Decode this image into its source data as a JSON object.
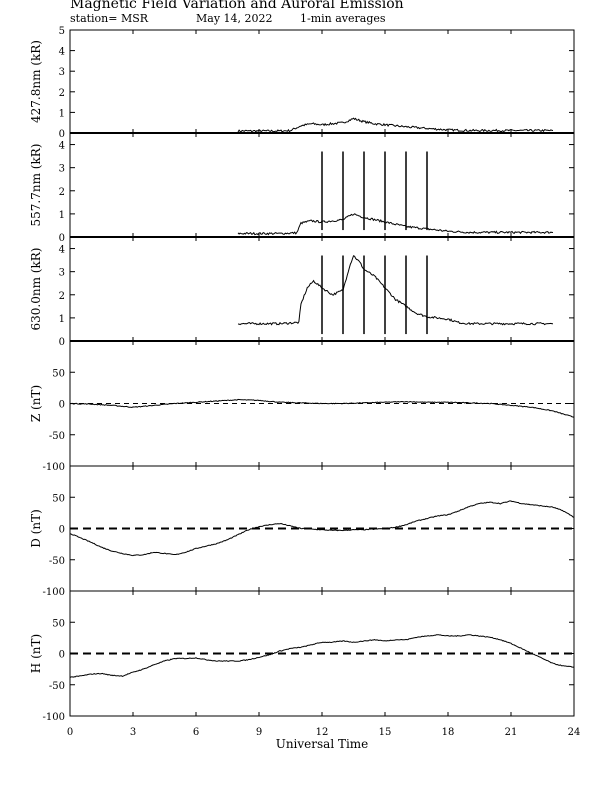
{
  "header": {
    "title": "Magnetic Field Variation and Auroral Emission",
    "station": "station= MSR",
    "date": "May 14, 2022",
    "averaging": "1-min averages"
  },
  "chart_data": {
    "type": "line",
    "xlabel": "Universal Time",
    "xlim": [
      0,
      24
    ],
    "xticks": [
      0,
      3,
      6,
      9,
      12,
      15,
      18,
      21,
      24
    ],
    "panels": [
      {
        "id": "p427",
        "ylabel": "427.8nm (kR)",
        "ylim": [
          0,
          5
        ],
        "yticks": [
          0,
          1,
          2,
          3,
          4,
          5
        ],
        "zero_line": "solid",
        "series": [
          {
            "x": [
              8,
              9,
              10,
              10.5,
              11,
              11.5,
              12,
              12.5,
              13,
              13.5,
              14,
              14.5,
              15,
              16,
              17,
              18,
              19,
              20,
              21,
              22,
              23
            ],
            "y": [
              0.1,
              0.1,
              0.1,
              0.12,
              0.35,
              0.45,
              0.4,
              0.45,
              0.5,
              0.7,
              0.55,
              0.45,
              0.4,
              0.3,
              0.22,
              0.15,
              0.12,
              0.12,
              0.12,
              0.12,
              0.12
            ]
          }
        ]
      },
      {
        "id": "p557",
        "ylabel": "557.7nm (kR)",
        "ylim": [
          0,
          4.5
        ],
        "yticks": [
          0,
          1,
          2,
          3,
          4
        ],
        "zero_line": "solid",
        "spikes": {
          "x": [
            12,
            13,
            14,
            15,
            16,
            17
          ],
          "y": 3.7
        },
        "series": [
          {
            "x": [
              8,
              9,
              10,
              10.8,
              11,
              11.5,
              12,
              12.5,
              13,
              13.5,
              14,
              14.5,
              15,
              16,
              17,
              18,
              19,
              20,
              21,
              22,
              23
            ],
            "y": [
              0.15,
              0.15,
              0.15,
              0.18,
              0.6,
              0.7,
              0.65,
              0.7,
              0.75,
              1.0,
              0.85,
              0.75,
              0.65,
              0.45,
              0.35,
              0.25,
              0.2,
              0.2,
              0.2,
              0.2,
              0.2
            ]
          }
        ]
      },
      {
        "id": "p630",
        "ylabel": "630.0nm (kR)",
        "ylim": [
          0,
          4.5
        ],
        "yticks": [
          0,
          1,
          2,
          3,
          4
        ],
        "zero_line": "solid",
        "spikes": {
          "x": [
            12,
            13,
            14,
            15,
            16,
            17
          ],
          "y": 3.7
        },
        "series": [
          {
            "x": [
              8,
              9,
              10,
              10.9,
              11,
              11.3,
              11.6,
              12,
              12.5,
              13,
              13.3,
              13.5,
              13.8,
              14,
              14.5,
              15,
              15.5,
              16,
              16.5,
              17,
              17.5,
              18,
              18.5,
              19,
              20,
              21,
              22,
              23
            ],
            "y": [
              0.75,
              0.75,
              0.75,
              0.8,
              1.6,
              2.3,
              2.6,
              2.3,
              2.0,
              2.2,
              3.2,
              3.7,
              3.4,
              3.1,
              2.8,
              2.3,
              1.8,
              1.5,
              1.2,
              1.05,
              1.0,
              0.95,
              0.8,
              0.75,
              0.75,
              0.75,
              0.75,
              0.75
            ]
          }
        ]
      },
      {
        "id": "pZ",
        "ylabel": "Z (nT)",
        "ylim": [
          -100,
          100
        ],
        "yticks": [
          -100,
          -50,
          0,
          50
        ],
        "zero_line": "dashed-thin",
        "series": [
          {
            "x": [
              0,
              1,
              2,
              3,
              4,
              5,
              6,
              7,
              8,
              9,
              10,
              11,
              12,
              13,
              14,
              15,
              16,
              17,
              18,
              19,
              20,
              21,
              22,
              23,
              24
            ],
            "y": [
              0,
              -1,
              -3,
              -6,
              -3,
              0,
              2,
              4,
              6,
              5,
              2,
              1,
              0,
              0,
              1,
              2,
              3,
              2,
              2,
              1,
              0,
              -3,
              -6,
              -12,
              -22
            ]
          }
        ]
      },
      {
        "id": "pD",
        "ylabel": "D (nT)",
        "ylim": [
          -100,
          100
        ],
        "yticks": [
          -100,
          -50,
          0,
          50
        ],
        "zero_line": "dashed-thick",
        "series": [
          {
            "x": [
              0,
              0.5,
              1,
              1.5,
              2,
              2.5,
              3,
              3.5,
              4,
              4.5,
              5,
              5.5,
              6,
              6.5,
              7,
              7.5,
              8,
              8.5,
              9,
              9.5,
              10,
              10.5,
              11,
              11.5,
              12,
              12.5,
              13,
              13.5,
              14,
              14.5,
              15,
              15.5,
              16,
              16.5,
              17,
              17.5,
              18,
              18.5,
              19,
              19.5,
              20,
              20.5,
              21,
              21.5,
              22,
              22.5,
              23,
              23.5,
              24
            ],
            "y": [
              -8,
              -15,
              -22,
              -30,
              -36,
              -40,
              -43,
              -42,
              -38,
              -40,
              -42,
              -38,
              -32,
              -28,
              -24,
              -18,
              -10,
              -2,
              3,
              6,
              8,
              4,
              0,
              -1,
              -2,
              -3,
              -3,
              -2,
              -2,
              -1,
              0,
              2,
              6,
              12,
              16,
              20,
              22,
              28,
              35,
              40,
              42,
              40,
              44,
              40,
              38,
              36,
              34,
              28,
              18
            ]
          }
        ]
      },
      {
        "id": "pH",
        "ylabel": "H (nT)",
        "ylim": [
          -100,
          100
        ],
        "yticks": [
          -100,
          -50,
          0,
          50
        ],
        "zero_line": "dashed-thick",
        "series": [
          {
            "x": [
              0,
              0.5,
              1,
              1.5,
              2,
              2.5,
              3,
              3.5,
              4,
              4.5,
              5,
              5.5,
              6,
              6.5,
              7,
              7.5,
              8,
              8.5,
              9,
              9.5,
              10,
              10.5,
              11,
              11.5,
              12,
              12.5,
              13,
              13.5,
              14,
              14.5,
              15,
              15.5,
              16,
              16.5,
              17,
              17.5,
              18,
              18.5,
              19,
              19.5,
              20,
              20.5,
              21,
              21.5,
              22,
              22.5,
              23,
              23.5,
              24
            ],
            "y": [
              -38,
              -36,
              -33,
              -32,
              -35,
              -36,
              -30,
              -25,
              -18,
              -12,
              -8,
              -8,
              -7,
              -10,
              -12,
              -12,
              -12,
              -10,
              -6,
              -2,
              4,
              8,
              10,
              14,
              18,
              18,
              20,
              18,
              20,
              22,
              20,
              22,
              22,
              26,
              28,
              30,
              28,
              28,
              30,
              28,
              26,
              22,
              16,
              8,
              0,
              -8,
              -16,
              -20,
              -22
            ]
          }
        ]
      }
    ]
  }
}
